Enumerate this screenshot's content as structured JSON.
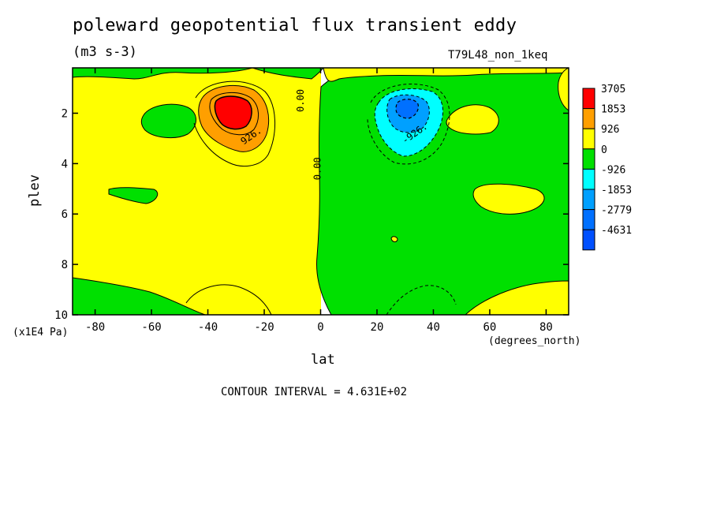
{
  "chart_data": {
    "type": "contour",
    "title": "poleward geopotential flux transient eddy",
    "units": "(m3 s-3)",
    "run_label": "T79L48_non_1keq",
    "xlabel": "lat",
    "x_units": "(degrees_north)",
    "ylabel": "plev",
    "y_units": "(x1E4 Pa)",
    "xlim": [
      -88,
      88
    ],
    "ylim": [
      10,
      0.2
    ],
    "x_ticks": [
      -80,
      -60,
      -40,
      -20,
      0,
      20,
      40,
      60,
      80
    ],
    "x_tick_labels": [
      "-80",
      "-60",
      "-40",
      "-20",
      "0",
      "20",
      "40",
      "60",
      "80"
    ],
    "y_ticks": [
      2,
      4,
      6,
      8,
      10
    ],
    "y_tick_labels": [
      "2",
      "4",
      "6",
      "8",
      "10"
    ],
    "contour_interval_text": "CONTOUR INTERVAL = 4.631E+02",
    "contour_labels": [
      {
        "text": "0.00",
        "lat": -6,
        "plev": 1.5
      },
      {
        "text": "0.00",
        "lat": 0,
        "plev": 4.2
      },
      {
        "text": "926.",
        "lat": -24,
        "plev": 3.0
      },
      {
        "text": "-926.",
        "lat": 34,
        "plev": 2.9
      }
    ],
    "colorbar": {
      "labels": [
        "3705",
        "1853",
        "926",
        "0",
        "-926",
        "-1853",
        "-2779",
        "-4631"
      ],
      "colors": [
        "#ff0000",
        "#ff9f00",
        "#ffff00",
        "#00e000",
        "#00ffff",
        "#00a0ff",
        "#0070ff",
        "#0050ff"
      ]
    },
    "features": [
      {
        "name": "positive maximum",
        "lat": -32,
        "plev": 1.8,
        "approx_value": 3705
      },
      {
        "name": "negative minimum",
        "lat": 30,
        "plev": 1.8,
        "approx_value": -2779
      }
    ]
  }
}
